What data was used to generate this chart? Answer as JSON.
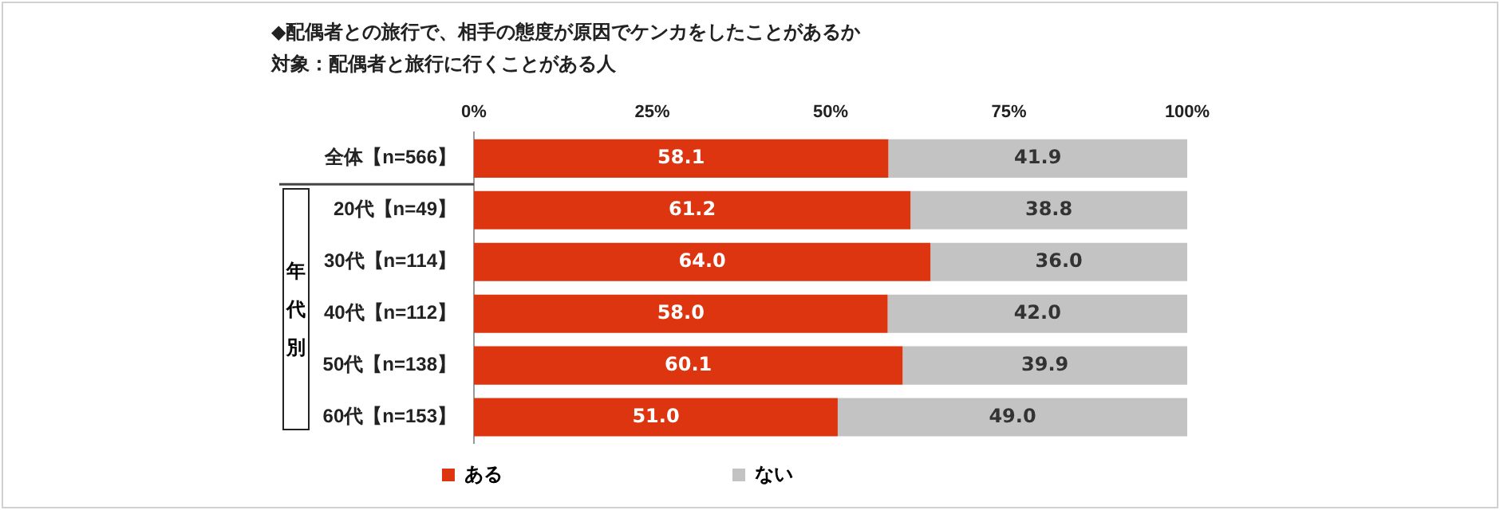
{
  "chart_data": {
    "type": "bar",
    "orientation": "horizontal",
    "stacked": true,
    "title": "◆配偶者との旅行で、相手の態度が原因でケンカをしたことがあるか",
    "subtitle": "対象：配偶者と旅行に行くことがある人",
    "categories": [
      "全体【n=566】",
      "20代【n=49】",
      "30代【n=114】",
      "40代【n=112】",
      "50代【n=138】",
      "60代【n=153】"
    ],
    "series": [
      {
        "name": "ある",
        "color": "#dc3510",
        "values": [
          58.1,
          61.2,
          64.0,
          58.0,
          60.1,
          51.0
        ],
        "value_labels": [
          "58.1",
          "61.2",
          "64.0",
          "58.0",
          "60.1",
          "51.0"
        ]
      },
      {
        "name": "ない",
        "color": "#c3c3c3",
        "values": [
          41.9,
          38.8,
          36.0,
          42.0,
          39.9,
          49.0
        ],
        "value_labels": [
          "41.9",
          "38.8",
          "36.0",
          "42.0",
          "39.9",
          "49.0"
        ]
      }
    ],
    "xlim": [
      0,
      100
    ],
    "xticks": [
      {
        "value": 0,
        "label": "0%"
      },
      {
        "value": 25,
        "label": "25%"
      },
      {
        "value": 50,
        "label": "50%"
      },
      {
        "value": 75,
        "label": "75%"
      },
      {
        "value": 100,
        "label": "100%"
      }
    ],
    "annotations": [
      "年代別"
    ],
    "grid": false,
    "legend": "bottom"
  }
}
